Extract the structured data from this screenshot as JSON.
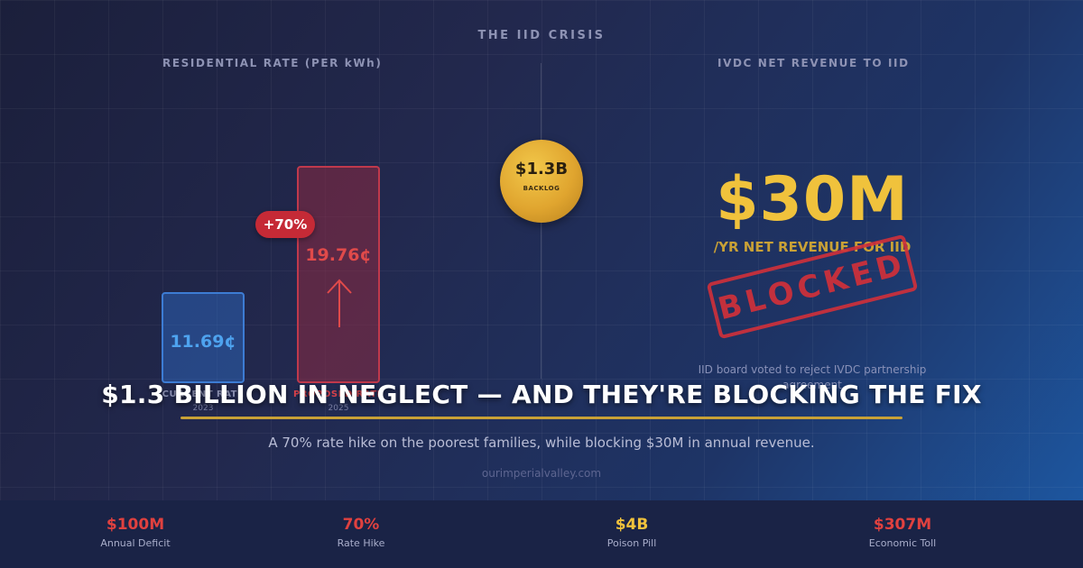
{
  "header": {
    "title": "THE IID CRISIS"
  },
  "left_panel": {
    "title": "RESIDENTIAL RATE (PER kWh)",
    "bars": [
      {
        "value_label": "11.69¢",
        "label": "CURRENT RATE",
        "year": "2023",
        "value": 11.69,
        "color": "#4ea3ef"
      },
      {
        "value_label": "19.76¢",
        "label": "PROPOSED RATE",
        "year": "2025",
        "value": 19.76,
        "color": "#e04a4a"
      }
    ],
    "increase_badge": "+70%"
  },
  "center": {
    "coin_value": "$1.3B",
    "coin_label": "BACKLOG"
  },
  "right_panel": {
    "title": "IVDC NET REVENUE TO IID",
    "big_value": "$30M",
    "subtitle": "/YR NET REVENUE FOR IID",
    "stamp": "BLOCKED",
    "note": "IID board voted to reject IVDC partnership agreement"
  },
  "headline": "$1.3 BILLION IN NEGLECT — AND THEY'RE BLOCKING THE FIX",
  "subheadline": "A 70% rate hike on the poorest families, while blocking $30M in annual revenue.",
  "site": "ourimperialvalley.com",
  "stats": [
    {
      "value": "$100M",
      "label": "Annual Deficit",
      "color": "#e0413f"
    },
    {
      "value": "70%",
      "label": "Rate Hike",
      "color": "#e0413f"
    },
    {
      "value": "$4B",
      "label": "Poison Pill",
      "color": "#f0c23c"
    },
    {
      "value": "$307M",
      "label": "Economic Toll",
      "color": "#e0413f"
    }
  ],
  "colors": {
    "accent_gold": "#f0c23c",
    "accent_red": "#e0413f",
    "accent_blue": "#4ea3ef",
    "background": "#22284d"
  }
}
